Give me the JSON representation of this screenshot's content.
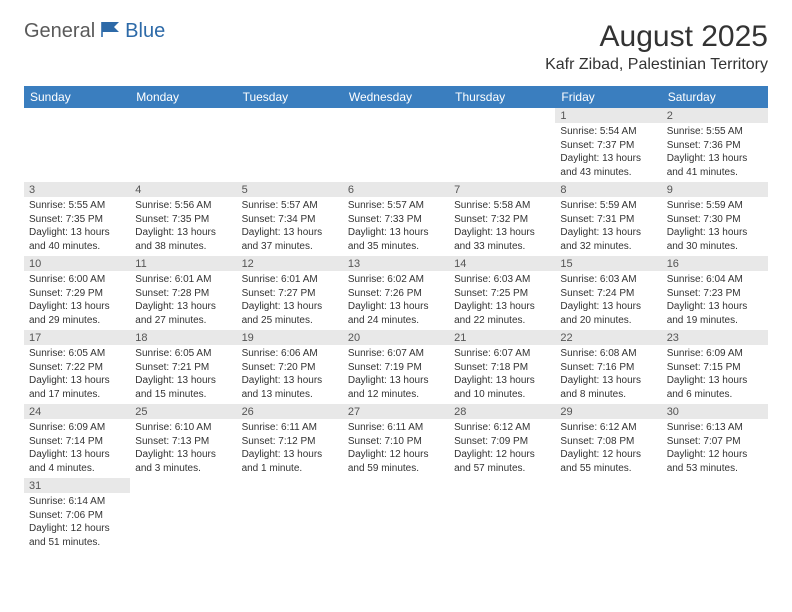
{
  "logo": {
    "general": "General",
    "blue": "Blue"
  },
  "title": "August 2025",
  "location": "Kafr Zibad, Palestinian Territory",
  "colors": {
    "header_bg": "#3a7ebf",
    "daynum_bg": "#e8e8e8"
  },
  "weekdays": [
    "Sunday",
    "Monday",
    "Tuesday",
    "Wednesday",
    "Thursday",
    "Friday",
    "Saturday"
  ],
  "weeks": [
    [
      null,
      null,
      null,
      null,
      null,
      {
        "n": "1",
        "sunrise": "5:54 AM",
        "sunset": "7:37 PM",
        "daylight": "13 hours and 43 minutes."
      },
      {
        "n": "2",
        "sunrise": "5:55 AM",
        "sunset": "7:36 PM",
        "daylight": "13 hours and 41 minutes."
      }
    ],
    [
      {
        "n": "3",
        "sunrise": "5:55 AM",
        "sunset": "7:35 PM",
        "daylight": "13 hours and 40 minutes."
      },
      {
        "n": "4",
        "sunrise": "5:56 AM",
        "sunset": "7:35 PM",
        "daylight": "13 hours and 38 minutes."
      },
      {
        "n": "5",
        "sunrise": "5:57 AM",
        "sunset": "7:34 PM",
        "daylight": "13 hours and 37 minutes."
      },
      {
        "n": "6",
        "sunrise": "5:57 AM",
        "sunset": "7:33 PM",
        "daylight": "13 hours and 35 minutes."
      },
      {
        "n": "7",
        "sunrise": "5:58 AM",
        "sunset": "7:32 PM",
        "daylight": "13 hours and 33 minutes."
      },
      {
        "n": "8",
        "sunrise": "5:59 AM",
        "sunset": "7:31 PM",
        "daylight": "13 hours and 32 minutes."
      },
      {
        "n": "9",
        "sunrise": "5:59 AM",
        "sunset": "7:30 PM",
        "daylight": "13 hours and 30 minutes."
      }
    ],
    [
      {
        "n": "10",
        "sunrise": "6:00 AM",
        "sunset": "7:29 PM",
        "daylight": "13 hours and 29 minutes."
      },
      {
        "n": "11",
        "sunrise": "6:01 AM",
        "sunset": "7:28 PM",
        "daylight": "13 hours and 27 minutes."
      },
      {
        "n": "12",
        "sunrise": "6:01 AM",
        "sunset": "7:27 PM",
        "daylight": "13 hours and 25 minutes."
      },
      {
        "n": "13",
        "sunrise": "6:02 AM",
        "sunset": "7:26 PM",
        "daylight": "13 hours and 24 minutes."
      },
      {
        "n": "14",
        "sunrise": "6:03 AM",
        "sunset": "7:25 PM",
        "daylight": "13 hours and 22 minutes."
      },
      {
        "n": "15",
        "sunrise": "6:03 AM",
        "sunset": "7:24 PM",
        "daylight": "13 hours and 20 minutes."
      },
      {
        "n": "16",
        "sunrise": "6:04 AM",
        "sunset": "7:23 PM",
        "daylight": "13 hours and 19 minutes."
      }
    ],
    [
      {
        "n": "17",
        "sunrise": "6:05 AM",
        "sunset": "7:22 PM",
        "daylight": "13 hours and 17 minutes."
      },
      {
        "n": "18",
        "sunrise": "6:05 AM",
        "sunset": "7:21 PM",
        "daylight": "13 hours and 15 minutes."
      },
      {
        "n": "19",
        "sunrise": "6:06 AM",
        "sunset": "7:20 PM",
        "daylight": "13 hours and 13 minutes."
      },
      {
        "n": "20",
        "sunrise": "6:07 AM",
        "sunset": "7:19 PM",
        "daylight": "13 hours and 12 minutes."
      },
      {
        "n": "21",
        "sunrise": "6:07 AM",
        "sunset": "7:18 PM",
        "daylight": "13 hours and 10 minutes."
      },
      {
        "n": "22",
        "sunrise": "6:08 AM",
        "sunset": "7:16 PM",
        "daylight": "13 hours and 8 minutes."
      },
      {
        "n": "23",
        "sunrise": "6:09 AM",
        "sunset": "7:15 PM",
        "daylight": "13 hours and 6 minutes."
      }
    ],
    [
      {
        "n": "24",
        "sunrise": "6:09 AM",
        "sunset": "7:14 PM",
        "daylight": "13 hours and 4 minutes."
      },
      {
        "n": "25",
        "sunrise": "6:10 AM",
        "sunset": "7:13 PM",
        "daylight": "13 hours and 3 minutes."
      },
      {
        "n": "26",
        "sunrise": "6:11 AM",
        "sunset": "7:12 PM",
        "daylight": "13 hours and 1 minute."
      },
      {
        "n": "27",
        "sunrise": "6:11 AM",
        "sunset": "7:10 PM",
        "daylight": "12 hours and 59 minutes."
      },
      {
        "n": "28",
        "sunrise": "6:12 AM",
        "sunset": "7:09 PM",
        "daylight": "12 hours and 57 minutes."
      },
      {
        "n": "29",
        "sunrise": "6:12 AM",
        "sunset": "7:08 PM",
        "daylight": "12 hours and 55 minutes."
      },
      {
        "n": "30",
        "sunrise": "6:13 AM",
        "sunset": "7:07 PM",
        "daylight": "12 hours and 53 minutes."
      }
    ],
    [
      {
        "n": "31",
        "sunrise": "6:14 AM",
        "sunset": "7:06 PM",
        "daylight": "12 hours and 51 minutes."
      },
      null,
      null,
      null,
      null,
      null,
      null
    ]
  ],
  "labels": {
    "sunrise": "Sunrise: ",
    "sunset": "Sunset: ",
    "daylight": "Daylight: "
  }
}
